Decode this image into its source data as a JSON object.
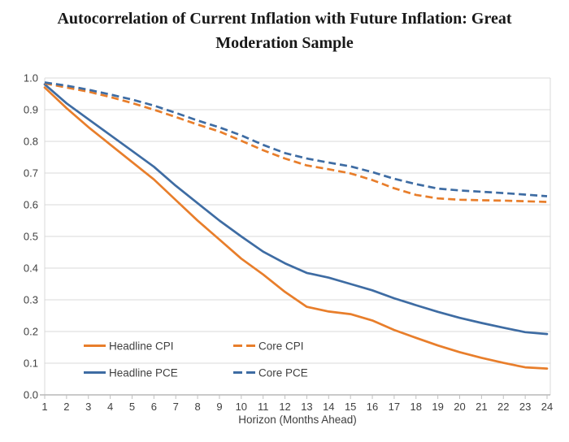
{
  "title": {
    "line1": "Autocorrelation of Current Inflation with Future Inflation: Great",
    "line2": "Moderation Sample"
  },
  "colors": {
    "orange": "#E87E2B",
    "blue": "#3E6CA3",
    "gridline": "#D9D9D9",
    "axis_line": "#ABABAB",
    "tick": "#BFBFBF",
    "axis_text": "#3F3F3F",
    "title_text": "#181818"
  },
  "chart_data": {
    "type": "line",
    "title": "Autocorrelation of Current Inflation with Future Inflation: Great Moderation Sample",
    "xlabel": "Horizon (Months Ahead)",
    "ylabel": "",
    "x": [
      1,
      2,
      3,
      4,
      5,
      6,
      7,
      8,
      9,
      10,
      11,
      12,
      13,
      14,
      15,
      16,
      17,
      18,
      19,
      20,
      21,
      22,
      23,
      24
    ],
    "xlim": [
      1,
      24
    ],
    "ylim": [
      0.0,
      1.0
    ],
    "ytick_step": 0.1,
    "ytick_labels": [
      "0.0",
      "0.1",
      "0.2",
      "0.3",
      "0.4",
      "0.5",
      "0.6",
      "0.7",
      "0.8",
      "0.9",
      "1.0"
    ],
    "grid": true,
    "legend_position": "inside-bottom-left",
    "legend_rows": [
      [
        "Headline CPI",
        "Core CPI"
      ],
      [
        "Headline PCE",
        "Core PCE"
      ]
    ],
    "series": [
      {
        "name": "Headline CPI",
        "color": "#E87E2B",
        "dash": "solid",
        "values": [
          0.97,
          0.905,
          0.845,
          0.79,
          0.735,
          0.68,
          0.615,
          0.55,
          0.49,
          0.43,
          0.38,
          0.325,
          0.278,
          0.263,
          0.255,
          0.235,
          0.205,
          0.18,
          0.156,
          0.135,
          0.117,
          0.101,
          0.087,
          0.083
        ]
      },
      {
        "name": "Headline PCE",
        "color": "#3E6CA3",
        "dash": "solid",
        "values": [
          0.98,
          0.92,
          0.87,
          0.82,
          0.77,
          0.72,
          0.66,
          0.605,
          0.55,
          0.5,
          0.452,
          0.415,
          0.385,
          0.37,
          0.35,
          0.33,
          0.305,
          0.283,
          0.262,
          0.243,
          0.227,
          0.212,
          0.198,
          0.192
        ]
      },
      {
        "name": "Core CPI",
        "color": "#E87E2B",
        "dash": "dashed",
        "values": [
          0.983,
          0.97,
          0.957,
          0.94,
          0.921,
          0.9,
          0.877,
          0.853,
          0.831,
          0.802,
          0.772,
          0.746,
          0.724,
          0.712,
          0.699,
          0.678,
          0.652,
          0.631,
          0.62,
          0.616,
          0.614,
          0.613,
          0.611,
          0.609
        ]
      },
      {
        "name": "Core PCE",
        "color": "#3E6CA3",
        "dash": "dashed",
        "values": [
          0.986,
          0.976,
          0.963,
          0.948,
          0.932,
          0.913,
          0.89,
          0.866,
          0.844,
          0.819,
          0.789,
          0.763,
          0.746,
          0.733,
          0.721,
          0.703,
          0.682,
          0.665,
          0.651,
          0.645,
          0.641,
          0.637,
          0.632,
          0.627
        ]
      }
    ]
  }
}
